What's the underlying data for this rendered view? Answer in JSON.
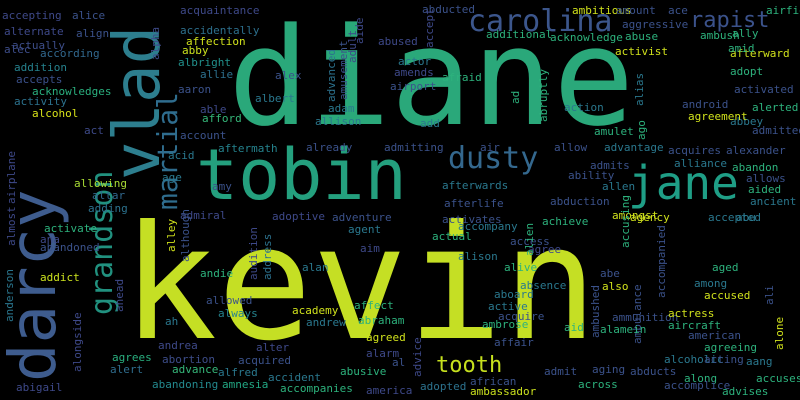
{
  "words": [
    {
      "text": "kevin",
      "color": "#c5df24"
    },
    {
      "text": "diane",
      "color": "#2aa87a"
    },
    {
      "text": "tobin",
      "color": "#24a07e"
    },
    {
      "text": "darcy",
      "color": "#3e5c8e"
    },
    {
      "text": "vlad",
      "color": "#2d7e8e"
    },
    {
      "text": "jane",
      "color": "#1f9e86"
    },
    {
      "text": "dusty",
      "color": "#34688e"
    },
    {
      "text": "carolina",
      "color": "#3c568c"
    },
    {
      "text": "grandson",
      "color": "#21917f"
    },
    {
      "text": "martial",
      "color": "#2f6d8e"
    },
    {
      "text": "rapist",
      "color": "#3b528b"
    },
    {
      "text": "tooth",
      "color": "#c6e01e"
    },
    {
      "text": "accepting",
      "color": "#3e4989"
    },
    {
      "text": "alice",
      "color": "#3b528b"
    },
    {
      "text": "alpha",
      "color": "#3e4a89"
    },
    {
      "text": "alternate",
      "color": "#3e4989"
    },
    {
      "text": "align",
      "color": "#3b528b"
    },
    {
      "text": "actually",
      "color": "#3d4e8a"
    },
    {
      "text": "alec",
      "color": "#3d4d8a"
    },
    {
      "text": "according",
      "color": "#31688e"
    },
    {
      "text": "addition",
      "color": "#26828e"
    },
    {
      "text": "accepts",
      "color": "#3b518b"
    },
    {
      "text": "acknowledges",
      "color": "#2ab07f"
    },
    {
      "text": "activity",
      "color": "#2c728e"
    },
    {
      "text": "alcohol",
      "color": "#d8e219"
    },
    {
      "text": "act",
      "color": "#3e4a89"
    },
    {
      "text": "airplane",
      "color": "#3e4989"
    },
    {
      "text": "almost",
      "color": "#3e4989"
    },
    {
      "text": "allowing",
      "color": "#a8db34"
    },
    {
      "text": "altar",
      "color": "#31688e"
    },
    {
      "text": "adding",
      "color": "#2c728e"
    },
    {
      "text": "activate",
      "color": "#2db27d"
    },
    {
      "text": "ana",
      "color": "#3e4989"
    },
    {
      "text": "abandoned",
      "color": "#3b528b"
    },
    {
      "text": "addict",
      "color": "#cbe11e"
    },
    {
      "text": "anderson",
      "color": "#2a768e"
    },
    {
      "text": "ahead",
      "color": "#3e4989"
    },
    {
      "text": "alongside",
      "color": "#3e4989"
    },
    {
      "text": "abigail",
      "color": "#3e4989"
    },
    {
      "text": "alert",
      "color": "#2f6d8e"
    },
    {
      "text": "agrees",
      "color": "#29af7f"
    },
    {
      "text": "abandoning",
      "color": "#23898e"
    },
    {
      "text": "abortion",
      "color": "#3d4d8a"
    },
    {
      "text": "andrea",
      "color": "#3e4989"
    },
    {
      "text": "advance",
      "color": "#35b779"
    },
    {
      "text": "amnesia",
      "color": "#22a884"
    },
    {
      "text": "alfred",
      "color": "#2a788e"
    },
    {
      "text": "accident",
      "color": "#2a788e"
    },
    {
      "text": "accompanies",
      "color": "#2db27d"
    },
    {
      "text": "abusive",
      "color": "#2db27d"
    },
    {
      "text": "america",
      "color": "#3e4989"
    },
    {
      "text": "adopted",
      "color": "#2c728e"
    },
    {
      "text": "african",
      "color": "#3b528b"
    },
    {
      "text": "ambassador",
      "color": "#cbe11e"
    },
    {
      "text": "acquaintance",
      "color": "#3e4989"
    },
    {
      "text": "accidentally",
      "color": "#2d708e"
    },
    {
      "text": "affection",
      "color": "#d0e11c"
    },
    {
      "text": "abby",
      "color": "#cbe11e"
    },
    {
      "text": "albright",
      "color": "#21918c"
    },
    {
      "text": "allie",
      "color": "#2d708e"
    },
    {
      "text": "aaron",
      "color": "#3b528b"
    },
    {
      "text": "able",
      "color": "#3e4989"
    },
    {
      "text": "afford",
      "color": "#35b779"
    },
    {
      "text": "account",
      "color": "#3b528b"
    },
    {
      "text": "acid",
      "color": "#2a788e"
    },
    {
      "text": "aftermath",
      "color": "#25838e"
    },
    {
      "text": "age",
      "color": "#2a788e"
    },
    {
      "text": "amy",
      "color": "#3b528b"
    },
    {
      "text": "admiral",
      "color": "#3e4989"
    },
    {
      "text": "alley",
      "color": "#d0e11c"
    },
    {
      "text": "although",
      "color": "#3b528b"
    },
    {
      "text": "andie",
      "color": "#2db27d"
    },
    {
      "text": "address",
      "color": "#2c728e"
    },
    {
      "text": "audition",
      "color": "#3e4989"
    },
    {
      "text": "allowed",
      "color": "#3b528b"
    },
    {
      "text": "always",
      "color": "#25838e"
    },
    {
      "text": "alter",
      "color": "#3e4989"
    },
    {
      "text": "acquired",
      "color": "#3b528b"
    },
    {
      "text": "academy",
      "color": "#d0e11c"
    },
    {
      "text": "andrew",
      "color": "#2a788e"
    },
    {
      "text": "affect",
      "color": "#2db27d"
    },
    {
      "text": "abraham",
      "color": "#2db27d"
    },
    {
      "text": "agreed",
      "color": "#d0e11c"
    },
    {
      "text": "alarm",
      "color": "#3e4989"
    },
    {
      "text": "al",
      "color": "#3b528b"
    },
    {
      "text": "advice",
      "color": "#3e4989"
    },
    {
      "text": "ah",
      "color": "#2a788e"
    },
    {
      "text": "alex",
      "color": "#3b528b"
    },
    {
      "text": "albert",
      "color": "#2a788e"
    },
    {
      "text": "advanced",
      "color": "#2c728e"
    },
    {
      "text": "amusement",
      "color": "#3b528b"
    },
    {
      "text": "adult",
      "color": "#3e4989"
    },
    {
      "text": "aide",
      "color": "#3e4989"
    },
    {
      "text": "adam",
      "color": "#2a788e"
    },
    {
      "text": "allison",
      "color": "#2a788e"
    },
    {
      "text": "already",
      "color": "#3b528b"
    },
    {
      "text": "admitting",
      "color": "#3b528b"
    },
    {
      "text": "adoptive",
      "color": "#3e4989"
    },
    {
      "text": "adventure",
      "color": "#3b528b"
    },
    {
      "text": "agent",
      "color": "#2a788e"
    },
    {
      "text": "aim",
      "color": "#3e4989"
    },
    {
      "text": "alan",
      "color": "#2a788e"
    },
    {
      "text": "abducted",
      "color": "#3b528b"
    },
    {
      "text": "accept",
      "color": "#3e4989"
    },
    {
      "text": "abused",
      "color": "#3e4989"
    },
    {
      "text": "actor",
      "color": "#2a788e"
    },
    {
      "text": "amends",
      "color": "#3e4989"
    },
    {
      "text": "airport",
      "color": "#3b528b"
    },
    {
      "text": "afraid",
      "color": "#2db27d"
    },
    {
      "text": "add",
      "color": "#2a788e"
    },
    {
      "text": "air",
      "color": "#3b528b"
    },
    {
      "text": "allow",
      "color": "#3b528b"
    },
    {
      "text": "afterwards",
      "color": "#2a788e"
    },
    {
      "text": "afterlife",
      "color": "#3b528b"
    },
    {
      "text": "activates",
      "color": "#3b528b"
    },
    {
      "text": "accompany",
      "color": "#2a788e"
    },
    {
      "text": "actual",
      "color": "#2db27d"
    },
    {
      "text": "alison",
      "color": "#2a788e"
    },
    {
      "text": "alive",
      "color": "#2db27d"
    },
    {
      "text": "absence",
      "color": "#2a788e"
    },
    {
      "text": "aboard",
      "color": "#2a788e"
    },
    {
      "text": "active",
      "color": "#2a788e"
    },
    {
      "text": "ambrose",
      "color": "#2db27d"
    },
    {
      "text": "affair",
      "color": "#3b528b"
    },
    {
      "text": "acquire",
      "color": "#3b528b"
    },
    {
      "text": "admit",
      "color": "#3b528b"
    },
    {
      "text": "achieve",
      "color": "#2db27d"
    },
    {
      "text": "abduction",
      "color": "#3b528b"
    },
    {
      "text": "access",
      "color": "#3b528b"
    },
    {
      "text": "agree",
      "color": "#3e4989"
    },
    {
      "text": "alien",
      "color": "#2db27d"
    },
    {
      "text": "aid",
      "color": "#2db27d"
    },
    {
      "text": "amongst",
      "color": "#d0e11c"
    },
    {
      "text": "allen",
      "color": "#2a788e"
    },
    {
      "text": "agency",
      "color": "#d0e11c"
    },
    {
      "text": "accepted",
      "color": "#2a788e"
    },
    {
      "text": "ad",
      "color": "#2db27d"
    },
    {
      "text": "abruptly",
      "color": "#2db27d"
    },
    {
      "text": "ambitious",
      "color": "#d0e11c"
    },
    {
      "text": "amount",
      "color": "#3b528b"
    },
    {
      "text": "additional",
      "color": "#2db27d"
    },
    {
      "text": "acknowledge",
      "color": "#2db27d"
    },
    {
      "text": "aggressive",
      "color": "#3b528b"
    },
    {
      "text": "abuse",
      "color": "#2db27d"
    },
    {
      "text": "activist",
      "color": "#d0e11c"
    },
    {
      "text": "ambush",
      "color": "#2db27d"
    },
    {
      "text": "ace",
      "color": "#3b528b"
    },
    {
      "text": "airfield",
      "color": "#2db27d"
    },
    {
      "text": "ally",
      "color": "#2db27d"
    },
    {
      "text": "afterward",
      "color": "#d0e11c"
    },
    {
      "text": "amid",
      "color": "#2db27d"
    },
    {
      "text": "adopt",
      "color": "#2db27d"
    },
    {
      "text": "activated",
      "color": "#3b528b"
    },
    {
      "text": "alerted",
      "color": "#2db27d"
    },
    {
      "text": "abbey",
      "color": "#2a788e"
    },
    {
      "text": "admitted",
      "color": "#3b528b"
    },
    {
      "text": "action",
      "color": "#2a788e"
    },
    {
      "text": "amulet",
      "color": "#2db27d"
    },
    {
      "text": "ago",
      "color": "#2db27d"
    },
    {
      "text": "alias",
      "color": "#2a788e"
    },
    {
      "text": "android",
      "color": "#3b528b"
    },
    {
      "text": "agreement",
      "color": "#d0e11c"
    },
    {
      "text": "alexander",
      "color": "#3b528b"
    },
    {
      "text": "advantage",
      "color": "#2a788e"
    },
    {
      "text": "acquires",
      "color": "#3b528b"
    },
    {
      "text": "alliance",
      "color": "#2a788e"
    },
    {
      "text": "abandon",
      "color": "#2db27d"
    },
    {
      "text": "admits",
      "color": "#3b528b"
    },
    {
      "text": "ability",
      "color": "#3b528b"
    },
    {
      "text": "allows",
      "color": "#3b528b"
    },
    {
      "text": "aided",
      "color": "#2db27d"
    },
    {
      "text": "ancient",
      "color": "#2a788e"
    },
    {
      "text": "abu",
      "color": "#2a788e"
    },
    {
      "text": "accusing",
      "color": "#2db27d"
    },
    {
      "text": "abe",
      "color": "#3b528b"
    },
    {
      "text": "also",
      "color": "#d0e11c"
    },
    {
      "text": "among",
      "color": "#2a788e"
    },
    {
      "text": "accused",
      "color": "#d0e11c"
    },
    {
      "text": "aged",
      "color": "#2db27d"
    },
    {
      "text": "ali",
      "color": "#3b528b"
    },
    {
      "text": "ambushed",
      "color": "#3b528b"
    },
    {
      "text": "ambulance",
      "color": "#3b528b"
    },
    {
      "text": "accompanied",
      "color": "#3b528b"
    },
    {
      "text": "ammunition",
      "color": "#3b528b"
    },
    {
      "text": "alamein",
      "color": "#2db27d"
    },
    {
      "text": "actress",
      "color": "#d0e11c"
    },
    {
      "text": "aircraft",
      "color": "#2db27d"
    },
    {
      "text": "american",
      "color": "#3b528b"
    },
    {
      "text": "agreeing",
      "color": "#2db27d"
    },
    {
      "text": "alone",
      "color": "#d0e11c"
    },
    {
      "text": "alcoholic",
      "color": "#2a788e"
    },
    {
      "text": "acting",
      "color": "#3b528b"
    },
    {
      "text": "aang",
      "color": "#2a788e"
    },
    {
      "text": "aging",
      "color": "#3b528b"
    },
    {
      "text": "abducts",
      "color": "#3b528b"
    },
    {
      "text": "along",
      "color": "#2db27d"
    },
    {
      "text": "accuses",
      "color": "#2db27d"
    },
    {
      "text": "across",
      "color": "#2db27d"
    },
    {
      "text": "accomplice",
      "color": "#3b528b"
    },
    {
      "text": "advises",
      "color": "#2db27d"
    },
    {
      "text": "admitted",
      "color": "#3e4989"
    }
  ]
}
